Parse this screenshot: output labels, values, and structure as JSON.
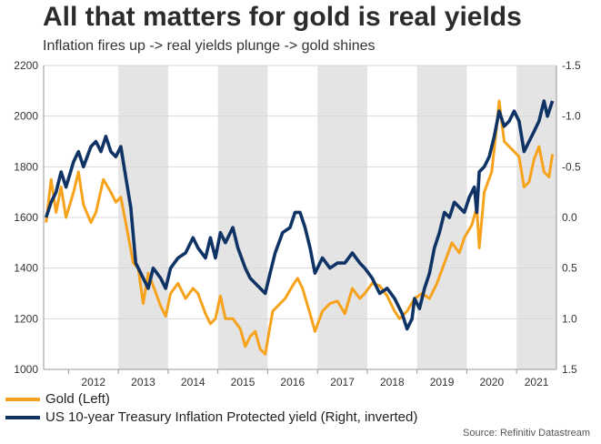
{
  "header": {
    "title": "All that matters for gold is real yields",
    "subtitle": "Inflation fires up -> real yields plunge -> gold shines"
  },
  "footer": {
    "source": "Source: Refinitiv Datastream"
  },
  "colors": {
    "gold": "#f7a21b",
    "tips": "#0e3364",
    "shade": "#e4e4e4",
    "grid": "#d9d9d9"
  },
  "chart_data": {
    "type": "line",
    "title": "All that matters for gold is real yields",
    "x_range": [
      2011.5,
      2021.8
    ],
    "year_labels": [
      "2012",
      "2013",
      "2014",
      "2015",
      "2016",
      "2017",
      "2018",
      "2019",
      "2020",
      "2021"
    ],
    "shaded_years": [
      2013,
      2015,
      2017,
      2019,
      2021
    ],
    "left_axis": {
      "range": [
        1000,
        2200
      ],
      "ticks": [
        "1000",
        "1200",
        "1400",
        "1600",
        "1800",
        "2000",
        "2200"
      ]
    },
    "right_axis": {
      "range": [
        1.5,
        -1.5
      ],
      "inverted": true,
      "ticks": [
        "1.5",
        "1.0",
        "0.5",
        "0.0",
        "-0.5",
        "-1.0",
        "-1.5"
      ]
    },
    "legend": {
      "position": "bottom-left"
    },
    "series": [
      {
        "name": "Gold (Left)",
        "axis": "left",
        "color": "#f7a21b",
        "points": [
          [
            2011.55,
            1580
          ],
          [
            2011.65,
            1750
          ],
          [
            2011.75,
            1620
          ],
          [
            2011.85,
            1720
          ],
          [
            2011.95,
            1600
          ],
          [
            2012.1,
            1700
          ],
          [
            2012.2,
            1780
          ],
          [
            2012.3,
            1650
          ],
          [
            2012.45,
            1580
          ],
          [
            2012.55,
            1620
          ],
          [
            2012.7,
            1750
          ],
          [
            2012.85,
            1700
          ],
          [
            2012.95,
            1660
          ],
          [
            2013.05,
            1680
          ],
          [
            2013.15,
            1580
          ],
          [
            2013.3,
            1420
          ],
          [
            2013.4,
            1400
          ],
          [
            2013.5,
            1260
          ],
          [
            2013.6,
            1380
          ],
          [
            2013.7,
            1330
          ],
          [
            2013.85,
            1250
          ],
          [
            2013.95,
            1210
          ],
          [
            2014.05,
            1300
          ],
          [
            2014.2,
            1340
          ],
          [
            2014.35,
            1280
          ],
          [
            2014.5,
            1320
          ],
          [
            2014.6,
            1300
          ],
          [
            2014.75,
            1220
          ],
          [
            2014.85,
            1180
          ],
          [
            2014.95,
            1200
          ],
          [
            2015.05,
            1290
          ],
          [
            2015.15,
            1200
          ],
          [
            2015.3,
            1200
          ],
          [
            2015.45,
            1160
          ],
          [
            2015.55,
            1090
          ],
          [
            2015.65,
            1130
          ],
          [
            2015.75,
            1150
          ],
          [
            2015.85,
            1080
          ],
          [
            2015.95,
            1060
          ],
          [
            2016.1,
            1230
          ],
          [
            2016.2,
            1250
          ],
          [
            2016.35,
            1280
          ],
          [
            2016.5,
            1330
          ],
          [
            2016.6,
            1360
          ],
          [
            2016.7,
            1320
          ],
          [
            2016.85,
            1220
          ],
          [
            2016.95,
            1150
          ],
          [
            2017.1,
            1230
          ],
          [
            2017.25,
            1260
          ],
          [
            2017.4,
            1270
          ],
          [
            2017.55,
            1220
          ],
          [
            2017.7,
            1320
          ],
          [
            2017.85,
            1280
          ],
          [
            2017.95,
            1300
          ],
          [
            2018.1,
            1340
          ],
          [
            2018.25,
            1330
          ],
          [
            2018.4,
            1290
          ],
          [
            2018.55,
            1230
          ],
          [
            2018.65,
            1200
          ],
          [
            2018.8,
            1230
          ],
          [
            2018.95,
            1280
          ],
          [
            2019.1,
            1300
          ],
          [
            2019.25,
            1280
          ],
          [
            2019.4,
            1340
          ],
          [
            2019.55,
            1420
          ],
          [
            2019.7,
            1500
          ],
          [
            2019.85,
            1460
          ],
          [
            2019.95,
            1520
          ],
          [
            2020.1,
            1570
          ],
          [
            2020.2,
            1640
          ],
          [
            2020.25,
            1480
          ],
          [
            2020.35,
            1700
          ],
          [
            2020.5,
            1780
          ],
          [
            2020.6,
            1960
          ],
          [
            2020.65,
            2060
          ],
          [
            2020.75,
            1900
          ],
          [
            2020.85,
            1880
          ],
          [
            2020.95,
            1860
          ],
          [
            2021.05,
            1840
          ],
          [
            2021.15,
            1720
          ],
          [
            2021.25,
            1740
          ],
          [
            2021.35,
            1830
          ],
          [
            2021.45,
            1880
          ],
          [
            2021.55,
            1780
          ],
          [
            2021.65,
            1760
          ],
          [
            2021.72,
            1850
          ]
        ]
      },
      {
        "name": "US 10-year Treasury Inflation Protected yield (Right, inverted)",
        "axis": "right",
        "color": "#0e3364",
        "points": [
          [
            2011.55,
            0.0
          ],
          [
            2011.65,
            -0.15
          ],
          [
            2011.75,
            -0.25
          ],
          [
            2011.85,
            -0.45
          ],
          [
            2011.95,
            -0.3
          ],
          [
            2012.1,
            -0.55
          ],
          [
            2012.2,
            -0.65
          ],
          [
            2012.3,
            -0.5
          ],
          [
            2012.45,
            -0.7
          ],
          [
            2012.55,
            -0.75
          ],
          [
            2012.65,
            -0.65
          ],
          [
            2012.75,
            -0.8
          ],
          [
            2012.85,
            -0.65
          ],
          [
            2012.95,
            -0.6
          ],
          [
            2013.05,
            -0.7
          ],
          [
            2013.15,
            -0.4
          ],
          [
            2013.25,
            -0.1
          ],
          [
            2013.35,
            0.45
          ],
          [
            2013.45,
            0.55
          ],
          [
            2013.6,
            0.7
          ],
          [
            2013.7,
            0.5
          ],
          [
            2013.85,
            0.6
          ],
          [
            2013.95,
            0.7
          ],
          [
            2014.05,
            0.5
          ],
          [
            2014.2,
            0.4
          ],
          [
            2014.35,
            0.35
          ],
          [
            2014.5,
            0.2
          ],
          [
            2014.6,
            0.3
          ],
          [
            2014.75,
            0.4
          ],
          [
            2014.85,
            0.2
          ],
          [
            2014.95,
            0.4
          ],
          [
            2015.05,
            0.15
          ],
          [
            2015.15,
            0.25
          ],
          [
            2015.3,
            0.1
          ],
          [
            2015.4,
            0.3
          ],
          [
            2015.55,
            0.5
          ],
          [
            2015.65,
            0.6
          ],
          [
            2015.75,
            0.65
          ],
          [
            2015.85,
            0.7
          ],
          [
            2015.95,
            0.75
          ],
          [
            2016.05,
            0.55
          ],
          [
            2016.15,
            0.35
          ],
          [
            2016.3,
            0.15
          ],
          [
            2016.45,
            0.1
          ],
          [
            2016.55,
            -0.05
          ],
          [
            2016.65,
            -0.05
          ],
          [
            2016.75,
            0.1
          ],
          [
            2016.85,
            0.3
          ],
          [
            2016.95,
            0.55
          ],
          [
            2017.1,
            0.4
          ],
          [
            2017.25,
            0.5
          ],
          [
            2017.4,
            0.45
          ],
          [
            2017.55,
            0.45
          ],
          [
            2017.7,
            0.35
          ],
          [
            2017.85,
            0.45
          ],
          [
            2017.95,
            0.5
          ],
          [
            2018.1,
            0.6
          ],
          [
            2018.25,
            0.75
          ],
          [
            2018.4,
            0.7
          ],
          [
            2018.55,
            0.8
          ],
          [
            2018.7,
            0.95
          ],
          [
            2018.8,
            1.1
          ],
          [
            2018.9,
            1.0
          ],
          [
            2018.95,
            0.8
          ],
          [
            2019.05,
            0.9
          ],
          [
            2019.15,
            0.7
          ],
          [
            2019.25,
            0.55
          ],
          [
            2019.35,
            0.3
          ],
          [
            2019.45,
            0.15
          ],
          [
            2019.55,
            -0.05
          ],
          [
            2019.65,
            0.0
          ],
          [
            2019.75,
            -0.15
          ],
          [
            2019.85,
            -0.1
          ],
          [
            2019.95,
            -0.05
          ],
          [
            2020.05,
            -0.2
          ],
          [
            2020.15,
            -0.3
          ],
          [
            2020.2,
            -0.05
          ],
          [
            2020.25,
            -0.45
          ],
          [
            2020.35,
            -0.5
          ],
          [
            2020.45,
            -0.6
          ],
          [
            2020.55,
            -0.8
          ],
          [
            2020.65,
            -1.05
          ],
          [
            2020.75,
            -0.9
          ],
          [
            2020.85,
            -0.95
          ],
          [
            2020.95,
            -1.05
          ],
          [
            2021.05,
            -0.95
          ],
          [
            2021.15,
            -0.65
          ],
          [
            2021.25,
            -0.75
          ],
          [
            2021.35,
            -0.85
          ],
          [
            2021.45,
            -0.95
          ],
          [
            2021.55,
            -1.15
          ],
          [
            2021.62,
            -1.0
          ],
          [
            2021.72,
            -1.15
          ]
        ]
      }
    ]
  }
}
